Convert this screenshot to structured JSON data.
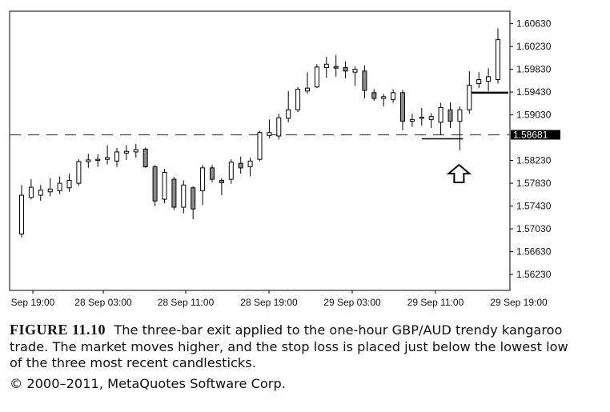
{
  "chart_data": {
    "type": "candlestick",
    "title": "",
    "xlabel": "",
    "ylabel": "",
    "ylim": [
      1.5595,
      1.6085
    ],
    "y_ticks": [
      "1.60630",
      "1.60230",
      "1.59830",
      "1.59430",
      "1.59030",
      "1.58230",
      "1.57830",
      "1.57430",
      "1.57030",
      "1.56630",
      "1.56230"
    ],
    "x_ticks": [
      "Sep 19:00",
      "28 Sep 03:00",
      "28 Sep 11:00",
      "28 Sep 19:00",
      "29 Sep 03:00",
      "29 Sep 11:00",
      "29 Sep 19:00"
    ],
    "current_price_label": "1.58681",
    "dashed_line_value": 1.58681,
    "stop_loss_level": 1.5861,
    "target_level": 1.5942,
    "arrow_candle_index": 46,
    "grid": false,
    "candles": [
      {
        "o": 1.5694,
        "h": 1.578,
        "l": 1.5688,
        "c": 1.5762
      },
      {
        "o": 1.5758,
        "h": 1.579,
        "l": 1.5755,
        "c": 1.5776
      },
      {
        "o": 1.5762,
        "h": 1.578,
        "l": 1.5752,
        "c": 1.5771
      },
      {
        "o": 1.5768,
        "h": 1.5792,
        "l": 1.576,
        "c": 1.5773
      },
      {
        "o": 1.577,
        "h": 1.5795,
        "l": 1.5764,
        "c": 1.5783
      },
      {
        "o": 1.5775,
        "h": 1.58,
        "l": 1.5768,
        "c": 1.5788
      },
      {
        "o": 1.5783,
        "h": 1.5825,
        "l": 1.5779,
        "c": 1.5821
      },
      {
        "o": 1.5821,
        "h": 1.5835,
        "l": 1.581,
        "c": 1.5824
      },
      {
        "o": 1.5823,
        "h": 1.5834,
        "l": 1.5812,
        "c": 1.5825
      },
      {
        "o": 1.5825,
        "h": 1.585,
        "l": 1.5816,
        "c": 1.5828
      },
      {
        "o": 1.5822,
        "h": 1.5845,
        "l": 1.5812,
        "c": 1.5838
      },
      {
        "o": 1.5836,
        "h": 1.585,
        "l": 1.5824,
        "c": 1.5839
      },
      {
        "o": 1.5838,
        "h": 1.5852,
        "l": 1.5828,
        "c": 1.5842
      },
      {
        "o": 1.5843,
        "h": 1.5846,
        "l": 1.581,
        "c": 1.5812
      },
      {
        "o": 1.5812,
        "h": 1.5815,
        "l": 1.5743,
        "c": 1.5752
      },
      {
        "o": 1.5755,
        "h": 1.5808,
        "l": 1.5748,
        "c": 1.5802
      },
      {
        "o": 1.579,
        "h": 1.5794,
        "l": 1.5736,
        "c": 1.5741
      },
      {
        "o": 1.5741,
        "h": 1.5788,
        "l": 1.573,
        "c": 1.578
      },
      {
        "o": 1.5775,
        "h": 1.5778,
        "l": 1.572,
        "c": 1.5738
      },
      {
        "o": 1.577,
        "h": 1.5815,
        "l": 1.5745,
        "c": 1.581
      },
      {
        "o": 1.581,
        "h": 1.5815,
        "l": 1.5785,
        "c": 1.579
      },
      {
        "o": 1.5788,
        "h": 1.5792,
        "l": 1.5762,
        "c": 1.5784
      },
      {
        "o": 1.579,
        "h": 1.5825,
        "l": 1.5782,
        "c": 1.582
      },
      {
        "o": 1.5818,
        "h": 1.583,
        "l": 1.58,
        "c": 1.581
      },
      {
        "o": 1.5812,
        "h": 1.5828,
        "l": 1.5795,
        "c": 1.5822
      },
      {
        "o": 1.5825,
        "h": 1.5875,
        "l": 1.5822,
        "c": 1.5872
      },
      {
        "o": 1.5867,
        "h": 1.5895,
        "l": 1.5862,
        "c": 1.5872
      },
      {
        "o": 1.5866,
        "h": 1.5905,
        "l": 1.586,
        "c": 1.5898
      },
      {
        "o": 1.5897,
        "h": 1.5945,
        "l": 1.589,
        "c": 1.5912
      },
      {
        "o": 1.5912,
        "h": 1.5952,
        "l": 1.5908,
        "c": 1.5948
      },
      {
        "o": 1.5945,
        "h": 1.5978,
        "l": 1.594,
        "c": 1.595
      },
      {
        "o": 1.5952,
        "h": 1.5992,
        "l": 1.595,
        "c": 1.5987
      },
      {
        "o": 1.5986,
        "h": 1.6005,
        "l": 1.5968,
        "c": 1.5992
      },
      {
        "o": 1.5988,
        "h": 1.6008,
        "l": 1.597,
        "c": 1.5985
      },
      {
        "o": 1.5986,
        "h": 1.5997,
        "l": 1.5967,
        "c": 1.598
      },
      {
        "o": 1.5978,
        "h": 1.5988,
        "l": 1.5954,
        "c": 1.5983
      },
      {
        "o": 1.598,
        "h": 1.599,
        "l": 1.5932,
        "c": 1.5946
      },
      {
        "o": 1.5942,
        "h": 1.5948,
        "l": 1.5928,
        "c": 1.5932
      },
      {
        "o": 1.5932,
        "h": 1.594,
        "l": 1.5918,
        "c": 1.5935
      },
      {
        "o": 1.593,
        "h": 1.5948,
        "l": 1.5924,
        "c": 1.5942
      },
      {
        "o": 1.5942,
        "h": 1.5947,
        "l": 1.5876,
        "c": 1.5892
      },
      {
        "o": 1.5892,
        "h": 1.5905,
        "l": 1.5882,
        "c": 1.5895
      },
      {
        "o": 1.5897,
        "h": 1.5915,
        "l": 1.5884,
        "c": 1.5899
      },
      {
        "o": 1.5895,
        "h": 1.5906,
        "l": 1.588,
        "c": 1.59
      },
      {
        "o": 1.589,
        "h": 1.5924,
        "l": 1.5868,
        "c": 1.5916
      },
      {
        "o": 1.5912,
        "h": 1.5925,
        "l": 1.588,
        "c": 1.5892
      },
      {
        "o": 1.5892,
        "h": 1.5918,
        "l": 1.5841,
        "c": 1.5912
      },
      {
        "o": 1.5912,
        "h": 1.598,
        "l": 1.5905,
        "c": 1.5955
      },
      {
        "o": 1.5958,
        "h": 1.5978,
        "l": 1.595,
        "c": 1.5965
      },
      {
        "o": 1.5962,
        "h": 1.5985,
        "l": 1.5945,
        "c": 1.597
      },
      {
        "o": 1.5965,
        "h": 1.6055,
        "l": 1.5958,
        "c": 1.6035
      }
    ]
  },
  "caption": {
    "figure_label": "FIGURE 11.10",
    "text": "The three-bar exit applied to the one-hour GBP/AUD trendy kangaroo trade. The market moves higher, and the stop loss is placed just below the lowest low of the three most recent candlesticks.",
    "copyright": "© 2000–2011, MetaQuotes Software Corp."
  }
}
